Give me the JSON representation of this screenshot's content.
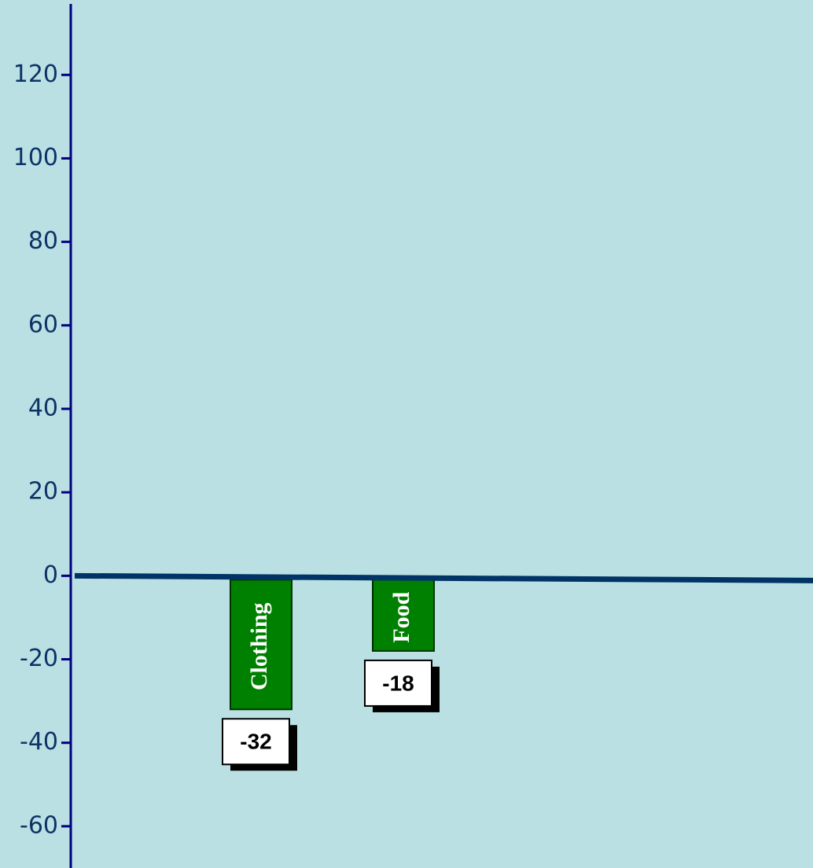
{
  "chart_data": {
    "type": "bar",
    "categories": [
      "Clothing",
      "Food"
    ],
    "values": [
      -32,
      -18
    ],
    "color": "#008000",
    "ylim": [
      -70,
      137
    ],
    "yticks": [
      -60,
      -40,
      -20,
      0,
      20,
      40,
      60,
      80,
      100,
      120
    ],
    "grid": false
  }
}
